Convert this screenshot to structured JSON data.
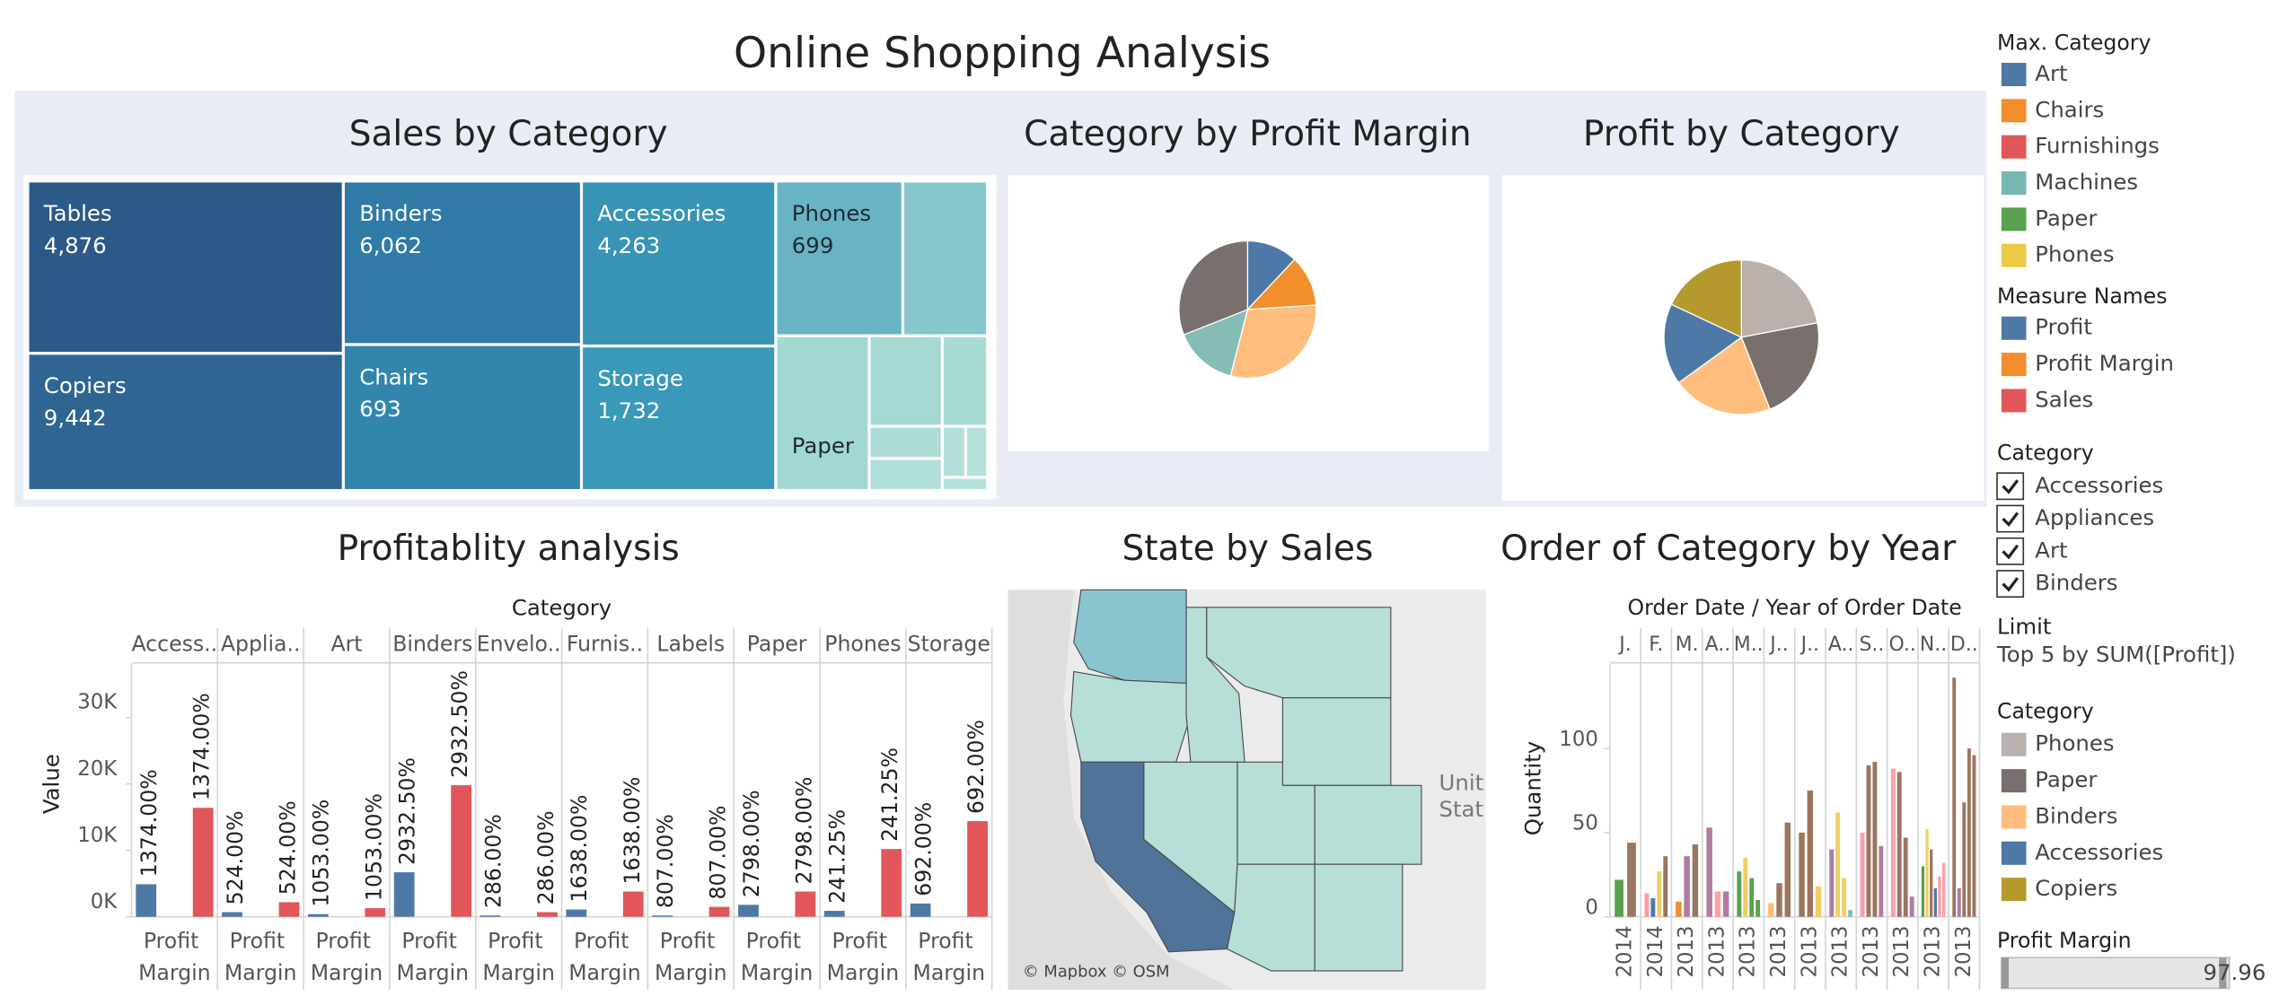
{
  "title": "Online Shopping Analysis",
  "chart_data": [
    {
      "type": "treemap",
      "title": "Sales by Category",
      "categories": [
        "Tables",
        "Copiers",
        "Binders",
        "Chairs",
        "Accessories",
        "Storage",
        "Phones",
        "Paper"
      ],
      "values": [
        4876,
        9442,
        6062,
        693,
        4263,
        1732,
        699,
        null
      ],
      "value_labels": [
        "4,876",
        "9,442",
        "6,062",
        "693",
        "4,263",
        "1,732",
        "699",
        null
      ],
      "colors": [
        "#2c5a88",
        "#2e6592",
        "#2f7aa6",
        "#3286ae",
        "#3794b5",
        "#3a98b8",
        "#68b4c5",
        "#a2d7d2"
      ]
    },
    {
      "type": "pie",
      "title": "Category by Profit Margin",
      "categories": [
        null,
        null,
        null,
        null,
        null
      ],
      "values": [
        12,
        12,
        30,
        15,
        31
      ],
      "colors": [
        "#4e79a7",
        "#f28e2b",
        "#ffbe7d",
        "#86bcb6",
        "#79706e"
      ]
    },
    {
      "type": "pie",
      "title": "Profit by Category",
      "legend_title": "Category",
      "categories": [
        "Phones",
        "Paper",
        "Binders",
        "Accessories",
        "Copiers"
      ],
      "values": [
        22,
        22,
        21,
        17,
        18
      ],
      "colors": [
        "#bab0ac",
        "#79706e",
        "#ffbe7d",
        "#4e79a7",
        "#b6992d"
      ]
    },
    {
      "type": "bar",
      "title": "Profitablity analysis",
      "x_header": "Category",
      "ylabel": "Value",
      "x_label": "Profit Margin",
      "categories": [
        "Access..",
        "Applia..",
        "Art",
        "Binders",
        "Envelo..",
        "Furnis..",
        "Labels",
        "Paper",
        "Phones",
        "Storage"
      ],
      "ylim": [
        0,
        38000
      ],
      "yticks": [
        {
          "value": 0,
          "label": "0K"
        },
        {
          "value": 10000,
          "label": "10K"
        },
        {
          "value": 20000,
          "label": "20K"
        },
        {
          "value": 30000,
          "label": "30K"
        }
      ],
      "series": [
        {
          "color": "#4e79a7",
          "values": [
            4900,
            700,
            400,
            6700,
            200,
            1100,
            200,
            1800,
            900,
            2000
          ],
          "labels": [
            "1374.00%",
            "524.00%",
            "1053.00%",
            "2932.50%",
            "286.00%",
            "1638.00%",
            "807.00%",
            "2798.00%",
            "241.25%",
            "692.00%"
          ]
        },
        {
          "color": "#e15759",
          "values": [
            16400,
            2200,
            1300,
            19800,
            700,
            3800,
            1500,
            3800,
            10200,
            14400
          ],
          "labels": [
            "1374.00%",
            "524.00%",
            "1053.00%",
            "2932.50%",
            "286.00%",
            "1638.00%",
            "807.00%",
            "2798.00%",
            "241.25%",
            "692.00%"
          ]
        }
      ]
    },
    {
      "type": "map",
      "title": "State by Sales",
      "credit": "© Mapbox © OSM",
      "labels": [
        "Unit",
        "Stat"
      ]
    },
    {
      "type": "bar",
      "title": "Order of Category by Year",
      "x_header": "Order Date  /  Year of Order Date",
      "ylabel": "Quantity",
      "ylim": [
        0,
        150
      ],
      "yticks": [
        0,
        50,
        100
      ],
      "groups": [
        {
          "month": "J.",
          "year": "2014",
          "values": [
            22,
            44
          ],
          "colors": [
            "#59a14f",
            "#9c755f"
          ]
        },
        {
          "month": "F.",
          "year": "2014",
          "values": [
            14,
            11,
            27,
            36
          ],
          "colors": [
            "#ff9da7",
            "#4e79a7",
            "#f1ce63",
            "#9c755f"
          ]
        },
        {
          "month": "M.",
          "year": "2013",
          "values": [
            9,
            36,
            43
          ],
          "colors": [
            "#f28e2b",
            "#b07aa1",
            "#9c755f"
          ]
        },
        {
          "month": "A..",
          "year": "2013",
          "values": [
            53,
            15,
            15
          ],
          "colors": [
            "#b07aa1",
            "#ff9da7",
            "#b07aa1"
          ]
        },
        {
          "month": "M..",
          "year": "2013",
          "values": [
            27,
            35,
            23,
            10
          ],
          "colors": [
            "#59a14f",
            "#f1ce63",
            "#59a14f",
            "#59a14f"
          ]
        },
        {
          "month": "J..",
          "year": "2013",
          "values": [
            8,
            20,
            56
          ],
          "colors": [
            "#ffbe7d",
            "#9c755f",
            "#9c755f"
          ]
        },
        {
          "month": "J..",
          "year": "2013",
          "values": [
            50,
            75,
            18
          ],
          "colors": [
            "#9c755f",
            "#9c755f",
            "#f1ce63"
          ]
        },
        {
          "month": "A..",
          "year": "2013",
          "values": [
            40,
            62,
            23,
            4
          ],
          "colors": [
            "#b07aa1",
            "#f1ce63",
            "#f1ce63",
            "#86bcb6"
          ]
        },
        {
          "month": "S..",
          "year": "2013",
          "values": [
            50,
            90,
            92,
            42
          ],
          "colors": [
            "#ff9da7",
            "#9c755f",
            "#9c755f",
            "#b07aa1"
          ]
        },
        {
          "month": "O..",
          "year": "2013",
          "values": [
            88,
            86,
            47,
            12
          ],
          "colors": [
            "#ff9da7",
            "#9c755f",
            "#9c755f",
            "#b07aa1"
          ]
        },
        {
          "month": "N..",
          "year": "2013",
          "values": [
            30,
            52,
            40,
            17,
            24,
            32
          ],
          "colors": [
            "#59a14f",
            "#f1ce63",
            "#9c755f",
            "#4e79a7",
            "#ff9da7",
            "#ff9da7"
          ]
        },
        {
          "month": "D..",
          "year": "2013",
          "values": [
            142,
            17,
            68,
            100,
            96
          ],
          "colors": [
            "#9c755f",
            "#b07aa1",
            "#9c755f",
            "#9c755f",
            "#9c755f"
          ]
        }
      ]
    }
  ],
  "legends": [
    {
      "title": "Max. Category",
      "items": [
        {
          "name": "Art",
          "color": "#4e79a7"
        },
        {
          "name": "Chairs",
          "color": "#f28e2b"
        },
        {
          "name": "Furnishings",
          "color": "#e15759"
        },
        {
          "name": "Machines",
          "color": "#76b7b2"
        },
        {
          "name": "Paper",
          "color": "#59a14f"
        },
        {
          "name": "Phones",
          "color": "#edc948"
        }
      ]
    },
    {
      "title": "Measure Names",
      "items": [
        {
          "name": "Profit",
          "color": "#4e79a7"
        },
        {
          "name": "Profit Margin",
          "color": "#f28e2b"
        },
        {
          "name": "Sales",
          "color": "#e15759"
        }
      ]
    }
  ],
  "filter": {
    "title": "Category",
    "items": [
      "Accessories",
      "Appliances",
      "Art",
      "Binders"
    ]
  },
  "limit": {
    "title": "Limit",
    "text": "Top 5 by SUM([Profit])"
  },
  "slider": {
    "title": "Profit Margin",
    "value": 97.96
  }
}
